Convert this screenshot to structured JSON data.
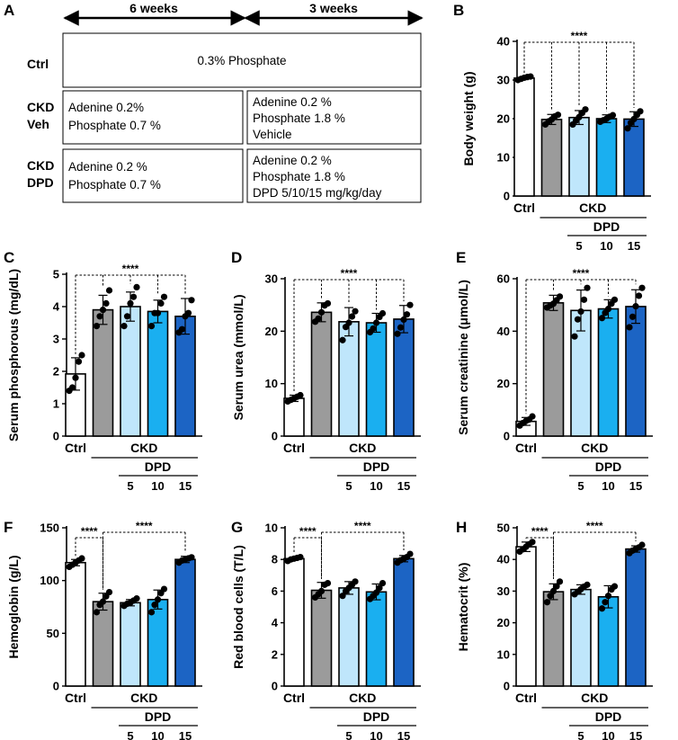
{
  "panelA": {
    "label": "A",
    "week_labels": [
      "6 weeks",
      "3 weeks"
    ],
    "rows": [
      {
        "label": [
          "Ctrl"
        ],
        "merged": "0.3% Phosphate"
      },
      {
        "label": [
          "CKD",
          "Veh"
        ],
        "phase1": [
          "Adenine 0.2%",
          "Phosphate 0.7 %"
        ],
        "phase2": [
          "Adenine 0.2 %",
          "Phosphate 1.8 %",
          "Vehicle"
        ]
      },
      {
        "label": [
          "CKD",
          "DPD"
        ],
        "phase1": [
          "Adenine 0.2 %",
          "Phosphate 0.7 %"
        ],
        "phase2": [
          "Adenine 0.2 %",
          "Phosphate 1.8 %",
          "DPD 5/10/15 mg/kg/day"
        ]
      }
    ]
  },
  "groups": {
    "ctrl": "Ctrl",
    "ckd": "CKD",
    "dpd": "DPD",
    "doses": [
      "5",
      "10",
      "15"
    ]
  },
  "colors": [
    "#ffffff",
    "#9b9b9b",
    "#bfe6fb",
    "#1aaff0",
    "#1c64c4"
  ],
  "chart_data": [
    {
      "panel": "B",
      "type": "bar",
      "ylabel": "Body weight (g)",
      "ylim": [
        0,
        40
      ],
      "yticks": [
        0,
        10,
        20,
        30,
        40
      ],
      "categories": [
        "Ctrl",
        "CKD",
        "DPD 5",
        "DPD 10",
        "DPD 15"
      ],
      "values": [
        30.5,
        19.8,
        20.3,
        20.0,
        19.9
      ],
      "errors": [
        0.4,
        1.3,
        1.8,
        1.0,
        1.9
      ],
      "points": [
        [
          30.0,
          30.3,
          30.6,
          30.8,
          30.9
        ],
        [
          18.5,
          19.3,
          19.8,
          20.6,
          21.0
        ],
        [
          18.5,
          19.5,
          20.4,
          21.5,
          22.4
        ],
        [
          19.2,
          19.6,
          20.0,
          20.5,
          20.9
        ],
        [
          17.5,
          18.9,
          19.9,
          21.0,
          21.9
        ]
      ],
      "significance": [
        {
          "stars": "****",
          "from": 0,
          "to": [
            1,
            2,
            3,
            4
          ]
        }
      ]
    },
    {
      "panel": "C",
      "type": "bar",
      "ylabel": "Serum phosphorous (mg/dL)",
      "ylim": [
        0,
        5
      ],
      "yticks": [
        0,
        1,
        2,
        3,
        4,
        5
      ],
      "categories": [
        "Ctrl",
        "CKD",
        "DPD 5",
        "DPD 10",
        "DPD 15"
      ],
      "values": [
        1.92,
        3.9,
        4.0,
        3.85,
        3.7
      ],
      "errors": [
        0.5,
        0.45,
        0.45,
        0.35,
        0.55
      ],
      "points": [
        [
          1.4,
          1.5,
          1.8,
          2.3,
          2.5
        ],
        [
          3.4,
          3.7,
          3.9,
          4.1,
          4.5
        ],
        [
          3.4,
          3.7,
          4.1,
          4.3,
          4.6
        ],
        [
          3.4,
          3.8,
          3.8,
          4.1,
          4.3
        ],
        [
          3.2,
          3.3,
          3.7,
          3.8,
          4.2
        ]
      ],
      "significance": [
        {
          "stars": "****",
          "from": 0,
          "to": [
            1,
            2,
            3,
            4
          ]
        }
      ]
    },
    {
      "panel": "D",
      "type": "bar",
      "ylabel": "Serum urea (mmol/L)",
      "ylim": [
        0,
        30
      ],
      "yticks": [
        0,
        10,
        20,
        30
      ],
      "categories": [
        "Ctrl",
        "CKD",
        "DPD 5",
        "DPD 10",
        "DPD 15"
      ],
      "values": [
        7.2,
        23.6,
        21.8,
        21.6,
        22.3
      ],
      "errors": [
        0.6,
        1.8,
        2.7,
        1.8,
        2.6
      ],
      "points": [
        [
          6.6,
          6.9,
          7.2,
          7.5,
          7.8
        ],
        [
          21.8,
          22.4,
          23.6,
          24.9,
          25.3
        ],
        [
          18.3,
          20.8,
          21.6,
          22.8,
          23.8
        ],
        [
          19.8,
          20.5,
          21.6,
          22.7,
          23.4
        ],
        [
          19.5,
          20.7,
          22.2,
          23.2,
          25.0
        ]
      ],
      "significance": [
        {
          "stars": "****",
          "from": 0,
          "to": [
            1,
            2,
            3,
            4
          ]
        }
      ]
    },
    {
      "panel": "E",
      "type": "bar",
      "ylabel": "Serum creatinine (μmol/L)",
      "ylim": [
        0,
        60
      ],
      "yticks": [
        0,
        20,
        40,
        60
      ],
      "categories": [
        "Ctrl",
        "CKD",
        "DPD 5",
        "DPD 10",
        "DPD 15"
      ],
      "values": [
        5.6,
        50.8,
        47.9,
        48.5,
        49.4
      ],
      "errors": [
        1.5,
        2.9,
        7.8,
        3.5,
        6.4
      ],
      "points": [
        [
          4.0,
          5.0,
          5.8,
          6.3,
          7.5
        ],
        [
          49.0,
          49.8,
          50.5,
          51.8,
          53.2
        ],
        [
          38.0,
          44.5,
          47.5,
          52.0,
          56.5
        ],
        [
          45.0,
          47.0,
          48.5,
          50.5,
          52.0
        ],
        [
          41.5,
          45.5,
          49.5,
          53.5,
          56.5
        ]
      ],
      "significance": [
        {
          "stars": "****",
          "from": 0,
          "to": [
            1,
            2,
            3,
            4
          ]
        }
      ]
    },
    {
      "panel": "F",
      "type": "bar",
      "ylabel": "Hemoglobin (g/L)",
      "ylim": [
        0,
        150
      ],
      "yticks": [
        0,
        50,
        100,
        150
      ],
      "categories": [
        "Ctrl",
        "CKD",
        "DPD 5",
        "DPD 10",
        "DPD 15"
      ],
      "values": [
        117,
        80,
        79,
        82,
        120
      ],
      "errors": [
        3,
        8,
        3,
        9,
        3
      ],
      "points": [
        [
          113,
          115,
          117,
          119,
          121
        ],
        [
          70,
          77,
          80,
          85,
          89
        ],
        [
          76,
          78,
          79,
          81,
          83
        ],
        [
          70,
          77,
          82,
          88,
          92
        ],
        [
          117,
          119,
          120,
          121,
          122
        ]
      ],
      "significance": [
        {
          "stars": "****",
          "from": 0,
          "to": [
            1
          ]
        },
        {
          "stars": "****",
          "from": 1,
          "to": [
            4
          ]
        }
      ]
    },
    {
      "panel": "G",
      "type": "bar",
      "ylabel": "Red blood cells (T/L)",
      "ylim": [
        0,
        10
      ],
      "yticks": [
        0,
        2,
        4,
        6,
        8,
        10
      ],
      "categories": [
        "Ctrl",
        "CKD",
        "DPD 5",
        "DPD 10",
        "DPD 15"
      ],
      "values": [
        8.05,
        6.05,
        6.2,
        5.95,
        8.05
      ],
      "errors": [
        0.1,
        0.5,
        0.4,
        0.5,
        0.2
      ],
      "points": [
        [
          7.9,
          8.0,
          8.05,
          8.1,
          8.15
        ],
        [
          5.6,
          5.8,
          6.0,
          6.4,
          6.5
        ],
        [
          5.7,
          6.0,
          6.2,
          6.4,
          6.6
        ],
        [
          5.5,
          5.7,
          5.9,
          6.2,
          6.5
        ],
        [
          7.8,
          7.95,
          8.05,
          8.15,
          8.35
        ]
      ],
      "significance": [
        {
          "stars": "****",
          "from": 0,
          "to": [
            1
          ]
        },
        {
          "stars": "****",
          "from": 1,
          "to": [
            4
          ]
        }
      ]
    },
    {
      "panel": "H",
      "type": "bar",
      "ylabel": "Hematocrit (%)",
      "ylim": [
        0,
        50
      ],
      "yticks": [
        0,
        10,
        20,
        30,
        40,
        50
      ],
      "categories": [
        "Ctrl",
        "CKD",
        "DPD 5",
        "DPD 10",
        "DPD 15"
      ],
      "values": [
        44.0,
        29.8,
        30.5,
        28.2,
        43.3
      ],
      "errors": [
        1.5,
        2.5,
        1.5,
        3.5,
        1.0
      ],
      "points": [
        [
          42.5,
          43.2,
          44.0,
          44.8,
          45.5
        ],
        [
          26.5,
          28.5,
          30.0,
          31.5,
          33.0
        ],
        [
          29.0,
          29.8,
          30.6,
          31.4,
          32.0
        ],
        [
          24.5,
          26.5,
          28.5,
          30.5,
          31.5
        ],
        [
          42.0,
          42.8,
          43.3,
          43.8,
          44.6
        ]
      ],
      "significance": [
        {
          "stars": "****",
          "from": 0,
          "to": [
            1
          ]
        },
        {
          "stars": "****",
          "from": 1,
          "to": [
            4
          ]
        }
      ]
    }
  ]
}
